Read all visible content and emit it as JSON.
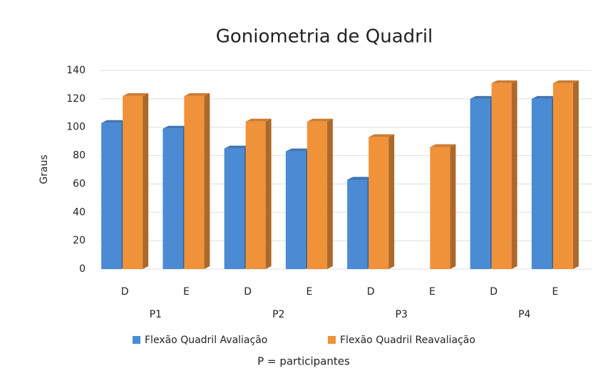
{
  "chart_data": {
    "type": "bar3d",
    "title": "Goniometria de Quadril",
    "ylabel": "Graus",
    "xlabel": "P = participantes",
    "categories": [
      "D",
      "E",
      "D",
      "E",
      "D",
      "E",
      "D",
      "E"
    ],
    "groups": [
      "P1",
      "P2",
      "P3",
      "P4"
    ],
    "series": [
      {
        "name": "Flexão Quadril Avaliação",
        "color": "#4a8bd4",
        "values": [
          103,
          99,
          85,
          83,
          63,
          null,
          120,
          120
        ]
      },
      {
        "name": "Flexão Quadril Reavaliação",
        "color": "#f0923a",
        "values": [
          122,
          122,
          104,
          104,
          93,
          86,
          131,
          131
        ]
      }
    ],
    "ylim": [
      0,
      140
    ],
    "yticks": [
      0,
      20,
      40,
      60,
      80,
      100,
      120,
      140
    ],
    "grid": true,
    "legend": "bottom"
  }
}
